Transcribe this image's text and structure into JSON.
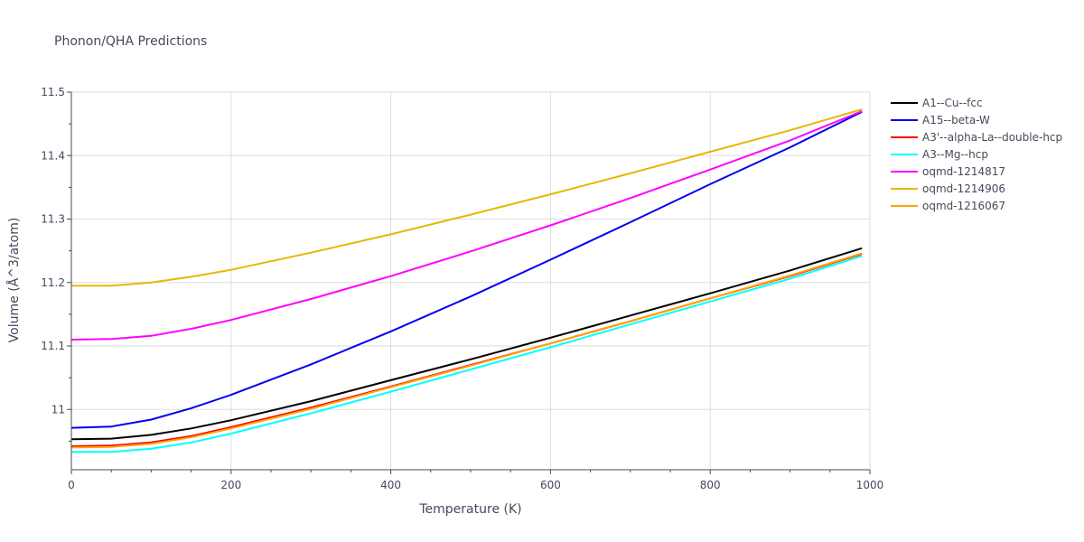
{
  "chart_data": {
    "type": "line",
    "title": "Phonon/QHA Predictions",
    "xlabel": "Temperature (K)",
    "ylabel": "Volume (Å^3/atom)",
    "xlim": [
      0,
      1000
    ],
    "ylim": [
      10.905,
      11.5
    ],
    "x_ticks": [
      0,
      200,
      400,
      600,
      800,
      1000
    ],
    "x_tick_labels": [
      "0",
      "200",
      "400",
      "600",
      "800",
      "1000"
    ],
    "y_ticks": [
      11,
      11.1,
      11.2,
      11.3,
      11.4,
      11.5
    ],
    "y_tick_labels": [
      "11",
      "11.1",
      "11.2",
      "11.3",
      "11.4",
      "11.5"
    ],
    "grid": true,
    "legend_position": "top-right",
    "x": [
      0,
      50,
      100,
      150,
      200,
      300,
      400,
      500,
      600,
      700,
      800,
      900,
      990
    ],
    "series": [
      {
        "name": "A1--Cu--fcc",
        "color": "#000000",
        "values": [
          10.953,
          10.954,
          10.96,
          10.97,
          10.983,
          11.013,
          11.046,
          11.079,
          11.113,
          11.148,
          11.183,
          11.219,
          11.254
        ]
      },
      {
        "name": "A15--beta-W",
        "color": "#0000ee",
        "values": [
          10.971,
          10.973,
          10.984,
          11.002,
          11.023,
          11.071,
          11.123,
          11.178,
          11.236,
          11.295,
          11.355,
          11.413,
          11.469
        ]
      },
      {
        "name": "A3'--alpha-La--double-hcp",
        "color": "#ff0000",
        "values": [
          10.942,
          10.943,
          10.948,
          10.958,
          10.972,
          11.003,
          11.036,
          11.07,
          11.104,
          11.139,
          11.175,
          11.21,
          11.245
        ]
      },
      {
        "name": "A3--Mg--hcp",
        "color": "#00ffff",
        "values": [
          10.933,
          10.933,
          10.938,
          10.948,
          10.962,
          10.994,
          11.028,
          11.063,
          11.098,
          11.134,
          11.17,
          11.206,
          11.242
        ]
      },
      {
        "name": "oqmd-1214817",
        "color": "#ff00ff",
        "values": [
          11.11,
          11.111,
          11.116,
          11.127,
          11.141,
          11.174,
          11.21,
          11.249,
          11.29,
          11.333,
          11.378,
          11.424,
          11.47
        ]
      },
      {
        "name": "oqmd-1214906",
        "color": "#e6b800",
        "values": [
          11.195,
          11.195,
          11.2,
          11.209,
          11.22,
          11.247,
          11.276,
          11.307,
          11.339,
          11.372,
          11.406,
          11.44,
          11.473
        ]
      },
      {
        "name": "oqmd-1216067",
        "color": "#ffa500",
        "values": [
          10.94,
          10.941,
          10.946,
          10.956,
          10.97,
          11.001,
          11.035,
          11.069,
          11.104,
          11.139,
          11.175,
          11.211,
          11.246
        ]
      }
    ]
  }
}
